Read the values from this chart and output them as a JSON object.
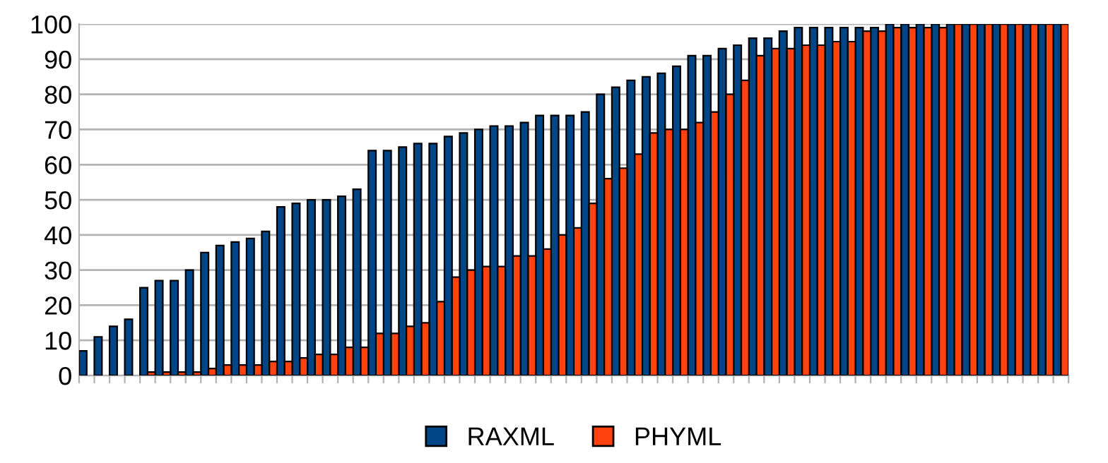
{
  "chart_data": {
    "type": "bar",
    "categories": [
      null,
      null,
      null,
      null,
      null,
      null,
      null,
      null,
      null,
      null,
      null,
      null,
      null,
      null,
      null,
      null,
      null,
      null,
      null,
      null,
      null,
      null,
      null,
      null,
      null,
      null,
      null,
      null,
      null,
      null,
      null,
      null,
      null,
      null,
      null,
      null,
      null,
      null,
      null,
      null,
      null,
      null,
      null,
      null,
      null,
      null,
      null,
      null,
      null,
      null,
      null,
      null,
      null,
      null,
      null,
      null,
      null,
      null,
      null,
      null,
      null,
      null,
      null,
      null,
      null
    ],
    "series": [
      {
        "name": "RAXML",
        "color": "#004586",
        "values": [
          7,
          11,
          14,
          16,
          25,
          27,
          27,
          30,
          35,
          37,
          38,
          39,
          41,
          48,
          49,
          50,
          50,
          51,
          53,
          64,
          64,
          65,
          66,
          66,
          68,
          69,
          70,
          71,
          71,
          72,
          74,
          74,
          74,
          75,
          80,
          82,
          84,
          85,
          86,
          88,
          91,
          91,
          93,
          94,
          96,
          96,
          98,
          99,
          99,
          99,
          99,
          99,
          99,
          100,
          100,
          100,
          100,
          100,
          100,
          100,
          100,
          100,
          100,
          100,
          100
        ]
      },
      {
        "name": "PHYML",
        "color": "#ff420e",
        "values": [
          null,
          null,
          null,
          null,
          1,
          1,
          1,
          1,
          2,
          3,
          3,
          3,
          4,
          4,
          5,
          6,
          6,
          8,
          8,
          12,
          12,
          14,
          15,
          21,
          28,
          30,
          31,
          31,
          34,
          34,
          36,
          40,
          42,
          49,
          56,
          59,
          63,
          69,
          70,
          70,
          72,
          75,
          80,
          84,
          91,
          93,
          93,
          94,
          94,
          95,
          95,
          98,
          98,
          99,
          99,
          99,
          99,
          100,
          100,
          100,
          100,
          100,
          100,
          100,
          100
        ]
      }
    ],
    "ylim": [
      0,
      100
    ],
    "yticks": [
      0,
      10,
      20,
      30,
      40,
      50,
      60,
      70,
      80,
      90,
      100
    ],
    "grid": "y",
    "legend": "bottom",
    "tick_labels": "y"
  }
}
